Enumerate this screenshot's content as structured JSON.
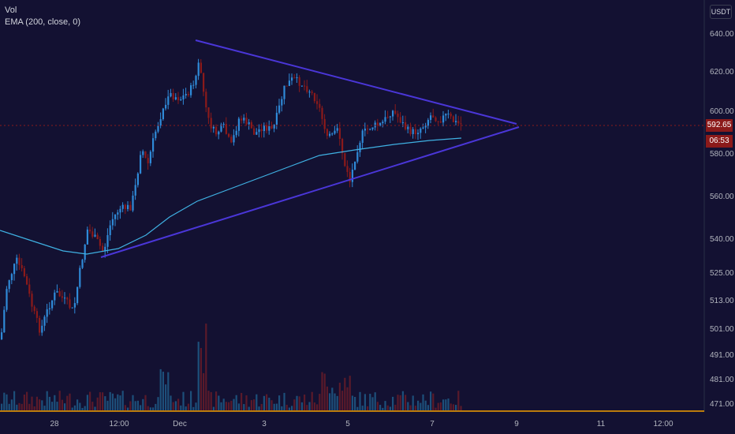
{
  "legend": {
    "volume_label": "Vol",
    "indicator_label": "EMA (200, close, 0)"
  },
  "currency_button": "USDT",
  "colors": {
    "background": "#131132",
    "up_candle": "#2f8ad8",
    "down_candle": "#8b1a1a",
    "ema_line": "#3fb1e3",
    "trendline": "#4a36d8",
    "current_price_line": "#8b1a1a"
  },
  "price_axis": {
    "ticks": [
      "640.00",
      "620.00",
      "600.00",
      "580.00",
      "560.00",
      "540.00",
      "525.00",
      "513.00",
      "501.00",
      "491.00",
      "481.00",
      "471.00"
    ]
  },
  "time_axis": {
    "ticks": [
      "28",
      "12:00",
      "Dec",
      "3",
      "5",
      "7",
      "9",
      "11",
      "12:00"
    ]
  },
  "current_price": {
    "price": "592.65",
    "countdown": "06:53"
  },
  "chart_data": {
    "type": "candlestick",
    "title": "",
    "ylim": [
      471,
      645
    ],
    "indicator": "EMA (200, close, 0)",
    "pattern": "symmetrical triangle",
    "upper_trendline": [
      {
        "x": "Dec 1",
        "y": 640
      },
      {
        "x": "Dec 9",
        "y": 593
      }
    ],
    "lower_trendline": [
      {
        "x": "Nov 29",
        "y": 533
      },
      {
        "x": "Dec 9",
        "y": 592
      }
    ],
    "current_price": 592.65
  }
}
